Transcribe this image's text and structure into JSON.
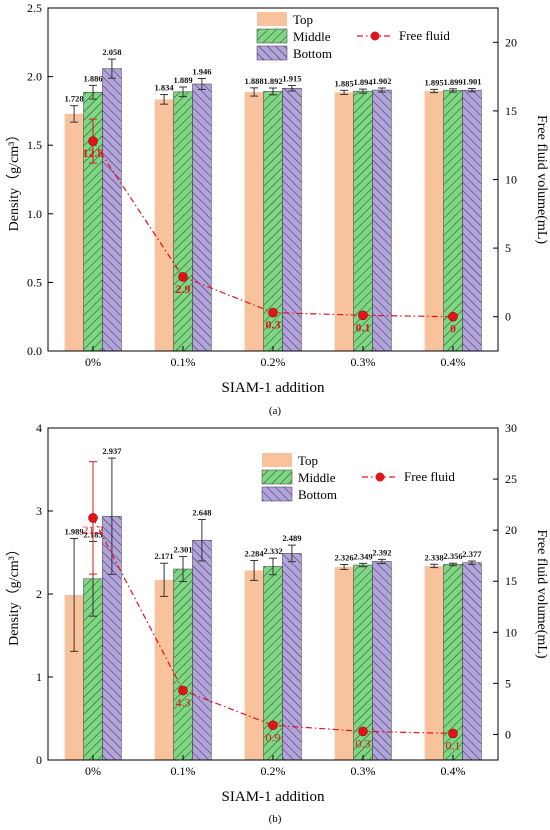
{
  "colors": {
    "top": "#f8c39c",
    "middle": "#7ed883",
    "bottom": "#b3a3dc",
    "free_fluid": "#e0151a"
  },
  "chart_data": [
    {
      "type": "bar",
      "panel_label": "(a)",
      "categories": [
        "0%",
        "0.1%",
        "0.2%",
        "0.3%",
        "0.4%"
      ],
      "xlabel": "SIAM-1 addition",
      "ylabel": "Density（g/cm³）",
      "y2label": "Free fluid volume(mL)",
      "ylim": [
        0,
        2.5
      ],
      "yticks": [
        "0.0",
        "0.5",
        "1.0",
        "1.5",
        "2.0",
        "2.5"
      ],
      "y2lim": [
        -2.5,
        22.5
      ],
      "y2ticks": [
        "0",
        "5",
        "10",
        "15",
        "20"
      ],
      "series": [
        {
          "name": "Top",
          "values": [
            1.728,
            1.834,
            1.888,
            1.885,
            1.895
          ],
          "errors": [
            0.06,
            0.035,
            0.03,
            0.015,
            0.012
          ],
          "labels": [
            "1.728",
            "1.834",
            "1.888",
            "1.885",
            "1.895"
          ]
        },
        {
          "name": "Middle",
          "values": [
            1.886,
            1.889,
            1.892,
            1.894,
            1.899
          ],
          "errors": [
            0.05,
            0.035,
            0.025,
            0.015,
            0.012
          ],
          "labels": [
            "1.886",
            "1.889",
            "1.892",
            "1.894",
            "1.899"
          ]
        },
        {
          "name": "Bottom",
          "values": [
            2.058,
            1.946,
            1.915,
            1.902,
            1.901
          ],
          "errors": [
            0.07,
            0.04,
            0.02,
            0.015,
            0.012
          ],
          "labels": [
            "2.058",
            "1.946",
            "1.915",
            "1.902",
            "1.901"
          ]
        }
      ],
      "line": {
        "name": "Free fluid",
        "values": [
          12.8,
          2.9,
          0.3,
          0.1,
          0
        ],
        "errors": [
          1.6,
          0,
          0,
          0,
          0
        ],
        "labels": [
          "12.8",
          "2.9",
          "0.3",
          "0.1",
          "0"
        ]
      }
    },
    {
      "type": "bar",
      "panel_label": "(b)",
      "categories": [
        "0%",
        "0.1%",
        "0.2%",
        "0.3%",
        "0.4%"
      ],
      "xlabel": "SIAM-1 addition",
      "ylabel": "Density（g/cm³）",
      "y2label": "Free fluid volume(mL)",
      "ylim": [
        0,
        4
      ],
      "yticks": [
        "0",
        "1",
        "2",
        "3",
        "4"
      ],
      "y2lim": [
        -2.5,
        30
      ],
      "y2ticks": [
        "0",
        "5",
        "10",
        "15",
        "20",
        "25",
        "30"
      ],
      "series": [
        {
          "name": "Top",
          "values": [
            1.989,
            2.171,
            2.284,
            2.326,
            2.338
          ],
          "errors": [
            0.68,
            0.2,
            0.12,
            0.03,
            0.02
          ],
          "labels": [
            "1.989",
            "2.171",
            "2.284",
            "2.326",
            "2.338"
          ]
        },
        {
          "name": "Middle",
          "values": [
            2.183,
            2.301,
            2.332,
            2.349,
            2.356
          ],
          "errors": [
            0.45,
            0.15,
            0.1,
            0.02,
            0.015
          ],
          "labels": [
            "2.183",
            "2.301",
            "2.332",
            "2.349",
            "2.356"
          ]
        },
        {
          "name": "Bottom",
          "values": [
            2.937,
            2.648,
            2.489,
            2.392,
            2.377
          ],
          "errors": [
            0.7,
            0.25,
            0.1,
            0.025,
            0.02
          ],
          "labels": [
            "2.937",
            "2.648",
            "2.489",
            "2.392",
            "2.377"
          ]
        }
      ],
      "line": {
        "name": "Free fluid",
        "values": [
          21.2,
          4.3,
          0.9,
          0.3,
          0.1
        ],
        "errors": [
          5.5,
          0,
          0,
          0,
          0
        ],
        "labels": [
          "21.2",
          "4.3",
          "0.9",
          "0.3",
          "0.1"
        ]
      }
    }
  ]
}
